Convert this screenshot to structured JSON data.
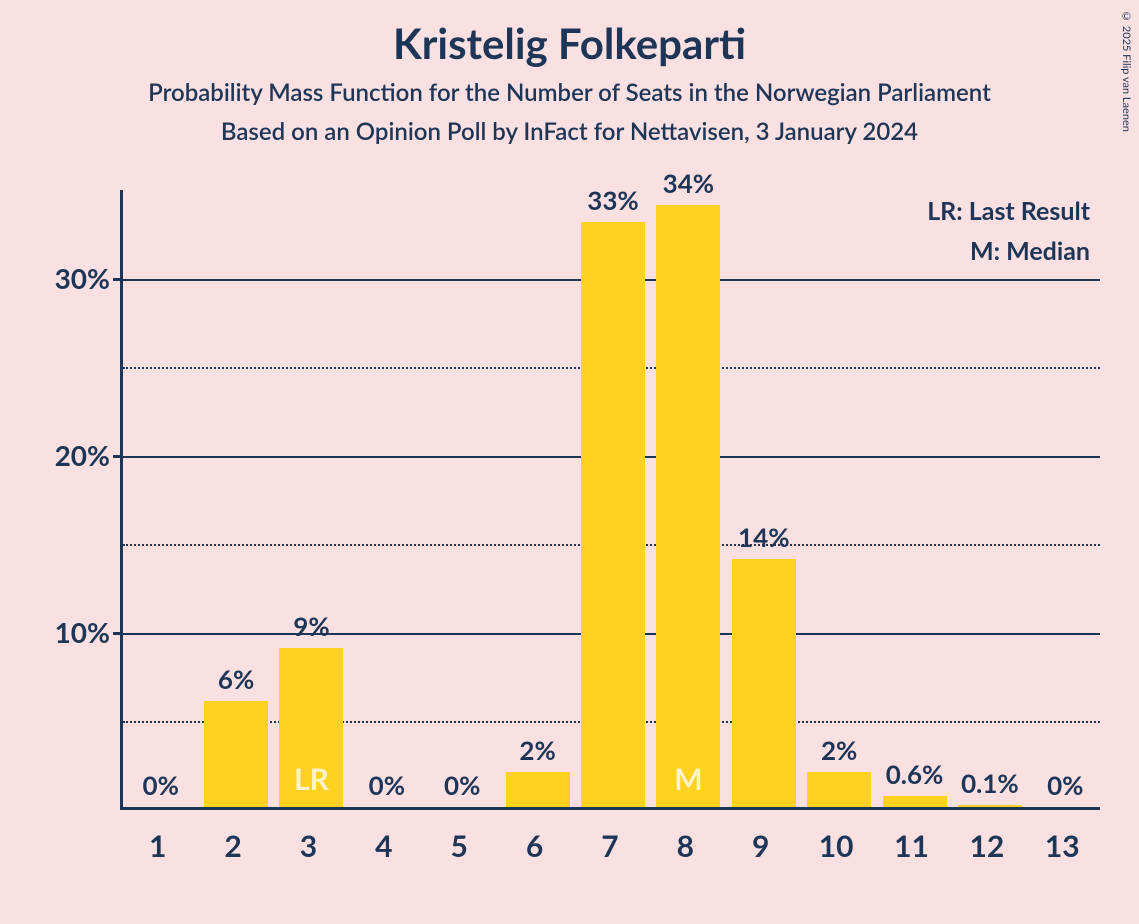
{
  "title": "Kristelig Folkeparti",
  "subtitle1": "Probability Mass Function for the Number of Seats in the Norwegian Parliament",
  "subtitle2": "Based on an Opinion Poll by InFact for Nettavisen, 3 January 2024",
  "copyright": "© 2025 Filip van Laenen",
  "legend": {
    "lr": "LR: Last Result",
    "m": "M: Median"
  },
  "chart": {
    "type": "bar",
    "background_color": "#fbe0e2",
    "bar_color": "#ffd21f",
    "text_color": "#1d3557",
    "inner_label_color": "#fff1cc",
    "grid_solid_color": "#1d3557",
    "grid_dotted_color": "#1d3557",
    "ylim": [
      0,
      35
    ],
    "y_ticks_major": [
      10,
      20,
      30
    ],
    "y_ticks_minor": [
      5,
      15,
      25
    ],
    "y_tick_labels": {
      "10": "10%",
      "20": "20%",
      "30": "30%"
    },
    "categories": [
      "1",
      "2",
      "3",
      "4",
      "5",
      "6",
      "7",
      "8",
      "9",
      "10",
      "11",
      "12",
      "13"
    ],
    "values": [
      0,
      6,
      9,
      0,
      0,
      2,
      33,
      34,
      14,
      2,
      0.6,
      0.1,
      0
    ],
    "display_labels": [
      "0%",
      "6%",
      "9%",
      "0%",
      "0%",
      "2%",
      "33%",
      "34%",
      "14%",
      "2%",
      "0.6%",
      "0.1%",
      "0%"
    ],
    "inner_labels": {
      "2": "LR",
      "7": "M"
    },
    "bar_width": 0.85,
    "title_fontsize": 42,
    "subtitle_fontsize": 24,
    "axis_label_fontsize": 28,
    "xlabel_fontsize": 30,
    "bar_label_fontsize": 26
  }
}
